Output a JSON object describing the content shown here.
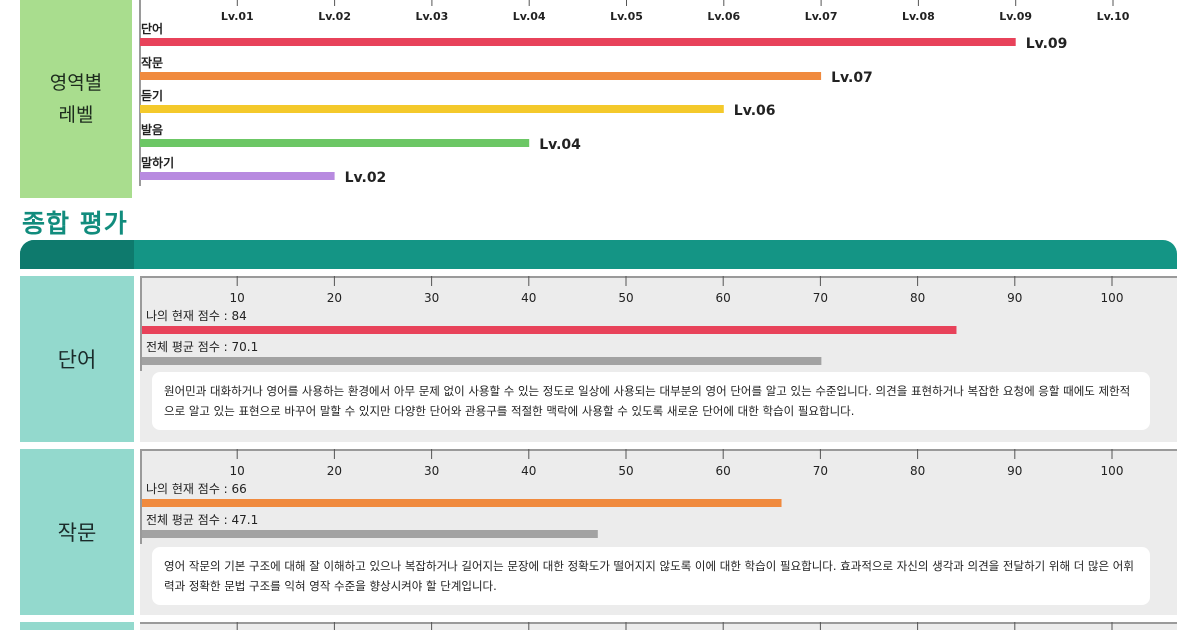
{
  "level_section": {
    "label": "영역별\n레벨"
  },
  "chart_data": [
    {
      "type": "bar",
      "orientation": "horizontal",
      "x_ticks": [
        "Lv.01",
        "Lv.02",
        "Lv.03",
        "Lv.04",
        "Lv.05",
        "Lv.06",
        "Lv.07",
        "Lv.08",
        "Lv.09",
        "Lv.10"
      ],
      "xlim": [
        0,
        10
      ],
      "categories": [
        "단어",
        "작문",
        "듣기",
        "발음",
        "말하기"
      ],
      "values": [
        9,
        7,
        6,
        4,
        2
      ],
      "value_labels": [
        "Lv.09",
        "Lv.07",
        "Lv.06",
        "Lv.04",
        "Lv.02"
      ],
      "colors": [
        "#e8425a",
        "#f08a3e",
        "#f4c92b",
        "#6cc765",
        "#b88ae0"
      ],
      "grid": true
    },
    {
      "type": "bar",
      "orientation": "horizontal",
      "x_ticks": [
        "10",
        "20",
        "30",
        "40",
        "50",
        "60",
        "70",
        "80",
        "90",
        "100"
      ],
      "xlim": [
        0,
        100
      ],
      "series": [
        {
          "label": "나의 현재 점수 : 84",
          "value": 84,
          "color": "#e8425a"
        },
        {
          "label": "전체 평균 점수 : 70.1",
          "value": 70.1,
          "color": "#a2a2a2"
        }
      ],
      "grid": true
    },
    {
      "type": "bar",
      "orientation": "horizontal",
      "x_ticks": [
        "10",
        "20",
        "30",
        "40",
        "50",
        "60",
        "70",
        "80",
        "90",
        "100"
      ],
      "xlim": [
        0,
        100
      ],
      "series": [
        {
          "label": "나의 현재 점수 : 66",
          "value": 66,
          "color": "#f08a3e"
        },
        {
          "label": "전체 평균 점수 : 47.1",
          "value": 47.1,
          "color": "#a2a2a2"
        }
      ],
      "grid": true
    }
  ],
  "summary": {
    "title": "종합 평가",
    "panels": [
      {
        "name": "단어",
        "description": "원어민과 대화하거나 영어를 사용하는 환경에서 아무 문제 없이 사용할 수 있는 정도로 일상에 사용되는 대부분의 영어 단어를 알고 있는 수준입니다. 의견을 표현하거나 복잡한 요청에 응할 때에도 제한적으로 알고 있는 표현으로 바꾸어 말할 수 있지만 다양한 단어와 관용구를 적절한 맥락에 사용할 수 있도록 새로운 단어에 대한 학습이 필요합니다."
      },
      {
        "name": "작문",
        "description": "영어 작문의 기본 구조에 대해 잘 이해하고 있으나 복잡하거나 길어지는 문장에 대한 정확도가 떨어지지 않도록 이에 대한 학습이 필요합니다. 효과적으로 자신의 생각과 의견을 전달하기 위해 더 많은 어휘력과 정확한 문법 구조를 익혀 영작 수준을 향상시켜야 할 단계입니다."
      }
    ]
  }
}
